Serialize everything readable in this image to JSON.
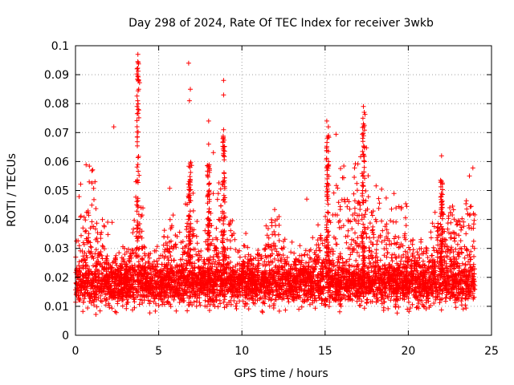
{
  "chart_data": {
    "type": "scatter",
    "title": "Day 298 of 2024, Rate Of TEC Index for receiver 3wkb",
    "xlabel": "GPS time / hours",
    "ylabel": "ROTI / TECUs",
    "xlim": [
      0,
      25
    ],
    "ylim": [
      0,
      0.1
    ],
    "xticks": [
      0,
      5,
      10,
      15,
      20,
      25
    ],
    "xtick_labels": [
      "0",
      "5",
      "10",
      "15",
      "20",
      "25"
    ],
    "yticks": [
      0,
      0.01,
      0.02,
      0.03,
      0.04,
      0.05,
      0.06,
      0.07,
      0.08,
      0.09,
      0.1
    ],
    "ytick_labels": [
      "0",
      "0.01",
      "0.02",
      "0.03",
      "0.04",
      "0.05",
      "0.06",
      "0.07",
      "0.08",
      "0.09",
      "0.1"
    ],
    "grid": true,
    "marker": "+",
    "color": "#ff0000",
    "series": [
      {
        "name": "ROTI",
        "x_range_hours": [
          0,
          24
        ],
        "typical_band": [
          0.01,
          0.025
        ],
        "spikes": [
          {
            "x": 2.3,
            "y": 0.072
          },
          {
            "x": 3.75,
            "y": 0.097
          },
          {
            "x": 3.7,
            "y": 0.092
          },
          {
            "x": 3.8,
            "y": 0.085
          },
          {
            "x": 3.7,
            "y": 0.079
          },
          {
            "x": 6.8,
            "y": 0.094
          },
          {
            "x": 6.9,
            "y": 0.085
          },
          {
            "x": 6.85,
            "y": 0.081
          },
          {
            "x": 8.0,
            "y": 0.074
          },
          {
            "x": 8.0,
            "y": 0.066
          },
          {
            "x": 8.9,
            "y": 0.088
          },
          {
            "x": 8.9,
            "y": 0.083
          },
          {
            "x": 8.9,
            "y": 0.071
          },
          {
            "x": 15.1,
            "y": 0.074
          },
          {
            "x": 15.2,
            "y": 0.072
          },
          {
            "x": 15.2,
            "y": 0.069
          },
          {
            "x": 17.3,
            "y": 0.079
          },
          {
            "x": 17.35,
            "y": 0.077
          },
          {
            "x": 17.3,
            "y": 0.073
          },
          {
            "x": 22.0,
            "y": 0.062
          },
          {
            "x": 13.9,
            "y": 0.047
          },
          {
            "x": 2.2,
            "y": 0.039
          }
        ]
      }
    ]
  }
}
